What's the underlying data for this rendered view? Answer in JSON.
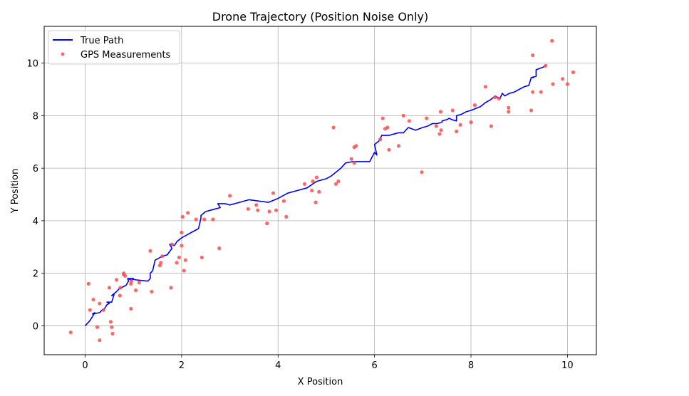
{
  "chart_data": {
    "type": "line",
    "title": "Drone Trajectory (Position Noise Only)",
    "xlabel": "X Position",
    "ylabel": "Y Position",
    "xlim": [
      -0.85,
      10.6
    ],
    "ylim": [
      -1.1,
      11.4
    ],
    "xticks": [
      0,
      2,
      4,
      6,
      8,
      10
    ],
    "yticks": [
      0,
      2,
      4,
      6,
      8,
      10
    ],
    "xtick_labels": [
      "0",
      "2",
      "4",
      "6",
      "8",
      "10"
    ],
    "ytick_labels": [
      "0",
      "2",
      "4",
      "6",
      "8",
      "10"
    ],
    "grid": true,
    "legend_position": "top-left",
    "series": [
      {
        "name": "True Path",
        "kind": "line",
        "color": "#0000ff",
        "x": [
          0.0,
          0.1,
          0.15,
          0.2,
          0.15,
          0.3,
          0.35,
          0.4,
          0.45,
          0.5,
          0.45,
          0.55,
          0.6,
          0.55,
          0.65,
          0.7,
          0.75,
          0.85,
          0.9,
          0.88,
          0.95,
          1.0,
          0.9,
          1.05,
          1.3,
          1.35,
          1.35,
          1.4,
          1.45,
          1.5,
          1.5,
          1.6,
          1.7,
          1.8,
          1.75,
          1.85,
          1.9,
          2.0,
          2.1,
          2.2,
          2.35,
          2.4,
          2.4,
          2.5,
          2.6,
          2.7,
          2.8,
          2.75,
          2.9,
          3.0,
          3.2,
          3.4,
          3.6,
          3.8,
          4.0,
          4.2,
          4.4,
          4.6,
          4.8,
          5.0,
          5.1,
          5.2,
          5.3,
          5.4,
          5.55,
          5.7,
          5.9,
          6.0,
          6.05,
          6.0,
          6.1,
          6.15,
          6.2,
          6.3,
          6.4,
          6.5,
          6.6,
          6.7,
          6.85,
          7.0,
          7.1,
          7.2,
          7.3,
          7.4,
          7.4,
          7.5,
          7.55,
          7.6,
          7.7,
          7.7,
          7.8,
          7.9,
          8.0,
          8.2,
          8.3,
          8.4,
          8.5,
          8.6,
          8.65,
          8.7,
          8.8,
          8.9,
          9.0,
          9.1,
          9.2,
          9.25,
          9.3,
          9.25,
          9.35,
          9.35,
          9.5,
          9.55
        ],
        "y": [
          0.0,
          0.2,
          0.35,
          0.5,
          0.45,
          0.5,
          0.6,
          0.65,
          0.8,
          0.85,
          0.9,
          0.9,
          1.2,
          1.15,
          1.3,
          1.4,
          1.45,
          1.55,
          1.7,
          1.8,
          1.75,
          1.8,
          1.8,
          1.75,
          1.7,
          1.8,
          2.0,
          2.1,
          2.5,
          2.55,
          2.55,
          2.65,
          2.7,
          2.95,
          3.1,
          3.05,
          3.2,
          3.35,
          3.45,
          3.55,
          3.7,
          4.1,
          4.2,
          4.35,
          4.4,
          4.45,
          4.5,
          4.65,
          4.65,
          4.6,
          4.7,
          4.8,
          4.75,
          4.7,
          4.85,
          5.05,
          5.15,
          5.25,
          5.5,
          5.6,
          5.7,
          5.85,
          6.0,
          6.2,
          6.25,
          6.25,
          6.25,
          6.6,
          6.5,
          6.9,
          7.05,
          7.25,
          7.25,
          7.25,
          7.3,
          7.35,
          7.35,
          7.55,
          7.45,
          7.55,
          7.6,
          7.7,
          7.7,
          7.75,
          7.8,
          7.85,
          7.9,
          7.85,
          7.8,
          8.0,
          8.05,
          8.15,
          8.2,
          8.35,
          8.5,
          8.6,
          8.75,
          8.65,
          8.85,
          8.75,
          8.85,
          8.9,
          9.0,
          9.1,
          9.15,
          9.45,
          9.45,
          9.45,
          9.5,
          9.75,
          9.85,
          9.9
        ]
      },
      {
        "name": "GPS Measurements",
        "kind": "scatter",
        "color": "#ff4d4d",
        "x": [
          -0.3,
          0.07,
          0.1,
          0.17,
          0.25,
          0.3,
          0.3,
          0.38,
          0.5,
          0.53,
          0.55,
          0.57,
          0.65,
          0.72,
          0.73,
          0.8,
          0.8,
          0.83,
          0.95,
          0.95,
          0.96,
          1.05,
          1.12,
          1.35,
          1.38,
          1.55,
          1.57,
          1.6,
          1.78,
          1.8,
          1.9,
          1.95,
          2.0,
          2.0,
          2.02,
          2.05,
          2.08,
          2.13,
          2.3,
          2.42,
          2.47,
          2.65,
          2.78,
          3.0,
          3.38,
          3.55,
          3.58,
          3.77,
          3.82,
          3.9,
          3.96,
          4.12,
          4.17,
          4.55,
          4.7,
          4.72,
          4.78,
          4.8,
          4.85,
          5.15,
          5.2,
          5.25,
          5.52,
          5.58,
          5.58,
          5.62,
          6.12,
          6.17,
          6.22,
          6.27,
          6.3,
          6.5,
          6.6,
          6.72,
          6.98,
          7.08,
          7.28,
          7.35,
          7.37,
          7.38,
          7.62,
          7.7,
          7.78,
          8.0,
          8.08,
          8.3,
          8.42,
          8.5,
          8.58,
          8.78,
          8.78,
          9.25,
          9.28,
          9.28,
          9.45,
          9.55,
          9.68,
          9.7,
          9.9,
          10.0,
          10.12
        ],
        "y": [
          -0.25,
          1.6,
          0.6,
          1.0,
          -0.05,
          0.85,
          -0.55,
          0.6,
          1.45,
          0.15,
          -0.05,
          -0.3,
          1.75,
          1.15,
          1.45,
          2.0,
          1.95,
          1.9,
          0.65,
          1.6,
          1.7,
          1.35,
          1.65,
          2.85,
          1.3,
          2.3,
          2.4,
          2.65,
          1.45,
          3.1,
          2.4,
          2.6,
          3.55,
          3.05,
          4.15,
          2.1,
          2.5,
          4.3,
          4.05,
          2.6,
          4.05,
          4.05,
          2.95,
          4.95,
          4.45,
          4.6,
          4.4,
          3.9,
          4.35,
          5.05,
          4.4,
          4.75,
          4.15,
          5.4,
          5.15,
          5.5,
          4.7,
          5.65,
          5.1,
          7.55,
          5.4,
          5.5,
          6.35,
          6.2,
          6.8,
          6.85,
          7.1,
          7.9,
          7.5,
          7.55,
          6.7,
          6.85,
          8.0,
          7.8,
          5.85,
          7.9,
          7.6,
          7.3,
          8.15,
          7.45,
          8.2,
          7.4,
          7.65,
          7.75,
          8.4,
          9.1,
          7.6,
          8.7,
          8.65,
          8.3,
          8.15,
          8.2,
          8.9,
          10.3,
          8.9,
          9.9,
          10.85,
          9.2,
          9.4,
          9.2,
          9.65
        ]
      }
    ]
  }
}
